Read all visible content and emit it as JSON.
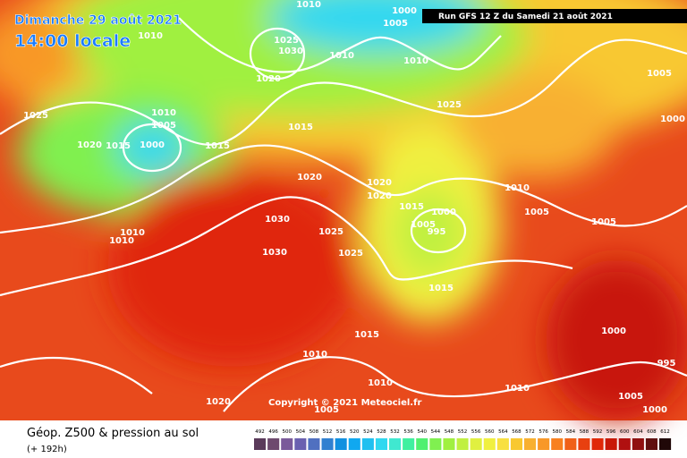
{
  "header": {
    "date": "Dimanche 29 août 2021",
    "time": "14:00 locale",
    "run": "Run GFS 12 Z du Samedi 21 août 2021"
  },
  "copyright": "Copyright © 2021 Meteociel.fr",
  "footer": {
    "title": "Géop. Z500 & pression au sol",
    "lead": "(+ 192h)"
  },
  "isobar_labels": [
    "1010",
    "1000",
    "1005",
    "1010",
    "1025",
    "1030",
    "1010",
    "1010",
    "1020",
    "1005",
    "1000",
    "1025",
    "1010",
    "1005",
    "1015",
    "1025",
    "1020",
    "1015",
    "1000",
    "1015",
    "1020",
    "1020",
    "1020",
    "1010",
    "1015",
    "1000",
    "1005",
    "995",
    "1005",
    "1030",
    "1005",
    "1010",
    "1010",
    "1025",
    "1030",
    "1025",
    "1015",
    "1015",
    "1000",
    "1010",
    "995",
    "1010",
    "1010",
    "1020",
    "1005",
    "1005",
    "1000"
  ],
  "colorbar": {
    "labels": [
      "492",
      "496",
      "500",
      "504",
      "508",
      "512",
      "516",
      "520",
      "524",
      "528",
      "532",
      "536",
      "540",
      "544",
      "548",
      "552",
      "556",
      "560",
      "564",
      "568",
      "572",
      "576",
      "580",
      "584",
      "588",
      "592",
      "596",
      "600",
      "604",
      "608",
      "612"
    ],
    "colors": [
      "#5a3a5a",
      "#6e4a6e",
      "#7a5a9a",
      "#6a60b0",
      "#5070c0",
      "#3080d0",
      "#1090e0",
      "#10a8f0",
      "#20c0f0",
      "#30d8f0",
      "#40e8d0",
      "#40f0a0",
      "#50f070",
      "#80f050",
      "#a0f040",
      "#c0f040",
      "#e0f040",
      "#f0f040",
      "#f8e040",
      "#f8c830",
      "#f8b030",
      "#f89828",
      "#f88020",
      "#f06018",
      "#e84010",
      "#e02808",
      "#c81808",
      "#b01010",
      "#901010",
      "#601010",
      "#200808"
    ]
  }
}
